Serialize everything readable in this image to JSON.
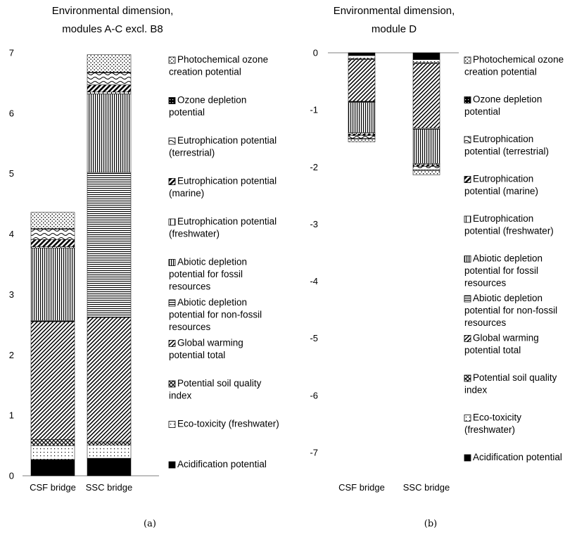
{
  "categories_legend": [
    {
      "key": "pocp",
      "label": [
        "Photochemical ozone",
        "creation potential"
      ],
      "pattern": "dots-dense"
    },
    {
      "key": "odp",
      "label": [
        "Ozone depletion",
        "potential"
      ],
      "pattern": "dense-black"
    },
    {
      "key": "ep_terr",
      "label": [
        "Eutrophication potential",
        "(terrestrial)"
      ],
      "pattern": "waves"
    },
    {
      "key": "ep_mar",
      "label": [
        "Eutrophication potential",
        "(marine)"
      ],
      "pattern": "diag-thick"
    },
    {
      "key": "ep_fw",
      "label": [
        "Eutrophication potential",
        "(freshwater)"
      ],
      "pattern": "vert-sparse"
    },
    {
      "key": "adp_fossil",
      "label": [
        "Abiotic depletion",
        "potential for fossil",
        "resources"
      ],
      "pattern": "vert-dense"
    },
    {
      "key": "adp_nonfossil",
      "label": [
        "Abiotic depletion",
        "potential for non-fossil",
        "resources"
      ],
      "pattern": "horiz"
    },
    {
      "key": "gwp",
      "label": [
        "Global warming",
        "potential total"
      ],
      "pattern": "diag"
    },
    {
      "key": "sqi",
      "label": [
        "Potential soil quality",
        "index"
      ],
      "pattern": "crosshatch"
    },
    {
      "key": "etox",
      "label": [
        "Eco-toxicity (freshwater)"
      ],
      "pattern": "dots-sparse"
    },
    {
      "key": "ap",
      "label": [
        "Acidification potential"
      ],
      "pattern": "solid"
    }
  ],
  "legend_b_labels": {
    "pocp": [
      "Photochemical ozone",
      "creation potential"
    ],
    "odp": [
      "Ozone depletion",
      "potential"
    ],
    "ep_terr": [
      "Eutrophication",
      "potential (terrestrial)"
    ],
    "ep_mar": [
      "Eutrophication",
      "potential (marine)"
    ],
    "ep_fw": [
      "Eutrophication",
      "potential (freshwater)"
    ],
    "adp_fossil": [
      "Abiotic depletion",
      "potential for fossil",
      "resources"
    ],
    "adp_nonfossil": [
      "Abiotic depletion",
      "potential for non-fossil",
      "resources"
    ],
    "gwp": [
      "Global warming",
      "potential total"
    ],
    "sqi": [
      "Potential soil quality",
      "index"
    ],
    "etox": [
      "Eco-toxicity",
      "(freshwater)"
    ],
    "ap": [
      "Acidification potential"
    ]
  },
  "chart_data": [
    {
      "type": "bar",
      "stacked": true,
      "panel_label": "(a)",
      "title": [
        "Environmental dimension,",
        "modules A-C excl. B8"
      ],
      "categories": [
        "CSF bridge",
        "SSC bridge"
      ],
      "ylim": [
        0,
        7
      ],
      "yticks": [
        0,
        1,
        2,
        3,
        4,
        5,
        6,
        7
      ],
      "legend_position": "right",
      "grid": false,
      "series": [
        {
          "name": "Acidification potential",
          "key": "ap",
          "values": [
            0.27,
            0.29
          ]
        },
        {
          "name": "Eco-toxicity (freshwater)",
          "key": "etox",
          "values": [
            0.23,
            0.22
          ]
        },
        {
          "name": "Potential soil quality index",
          "key": "sqi",
          "values": [
            0.1,
            0.05
          ]
        },
        {
          "name": "Global warming potential total",
          "key": "gwp",
          "values": [
            1.95,
            2.06
          ]
        },
        {
          "name": "Abiotic depletion potential for non-fossil resources",
          "key": "adp_nonfossil",
          "values": [
            0.02,
            2.4
          ]
        },
        {
          "name": "Abiotic depletion potential for fossil resources",
          "key": "adp_fossil",
          "values": [
            1.2,
            1.3
          ]
        },
        {
          "name": "Eutrophication potential (freshwater)",
          "key": "ep_fw",
          "values": [
            0.02,
            0.03
          ]
        },
        {
          "name": "Eutrophication potential (marine)",
          "key": "ep_mar",
          "values": [
            0.12,
            0.12
          ]
        },
        {
          "name": "Eutrophication potential (terrestrial)",
          "key": "ep_terr",
          "values": [
            0.17,
            0.2
          ]
        },
        {
          "name": "Ozone depletion potential",
          "key": "odp",
          "values": [
            0.01,
            0.01
          ]
        },
        {
          "name": "Photochemical ozone creation potential",
          "key": "pocp",
          "values": [
            0.27,
            0.29
          ]
        }
      ]
    },
    {
      "type": "bar",
      "stacked": true,
      "panel_label": "(b)",
      "title": [
        "Environmental dimension,",
        "module D"
      ],
      "categories": [
        "CSF bridge",
        "SSC bridge"
      ],
      "ylim": [
        -7,
        0
      ],
      "yticks": [
        0,
        -1,
        -2,
        -3,
        -4,
        -5,
        -6,
        -7
      ],
      "legend_position": "right",
      "grid": false,
      "series": [
        {
          "name": "Acidification potential",
          "key": "ap",
          "values": [
            -0.05,
            -0.12
          ]
        },
        {
          "name": "Eco-toxicity (freshwater)",
          "key": "etox",
          "values": [
            -0.05,
            -0.05
          ]
        },
        {
          "name": "Potential soil quality index",
          "key": "sqi",
          "values": [
            -0.02,
            -0.02
          ]
        },
        {
          "name": "Global warming potential total",
          "key": "gwp",
          "values": [
            -0.73,
            -1.13
          ]
        },
        {
          "name": "Abiotic depletion potential for non-fossil resources",
          "key": "adp_nonfossil",
          "values": [
            -0.02,
            -0.02
          ]
        },
        {
          "name": "Abiotic depletion potential for fossil resources",
          "key": "adp_fossil",
          "values": [
            -0.53,
            -0.6
          ]
        },
        {
          "name": "Eutrophication potential (freshwater)",
          "key": "ep_fw",
          "values": [
            -0.02,
            -0.02
          ]
        },
        {
          "name": "Eutrophication potential (marine)",
          "key": "ep_mar",
          "values": [
            -0.03,
            -0.03
          ]
        },
        {
          "name": "Eutrophication potential (terrestrial)",
          "key": "ep_terr",
          "values": [
            -0.05,
            -0.06
          ]
        },
        {
          "name": "Ozone depletion potential",
          "key": "odp",
          "values": [
            -0.01,
            -0.01
          ]
        },
        {
          "name": "Photochemical ozone creation potential",
          "key": "pocp",
          "values": [
            -0.05,
            -0.08
          ]
        }
      ]
    }
  ]
}
